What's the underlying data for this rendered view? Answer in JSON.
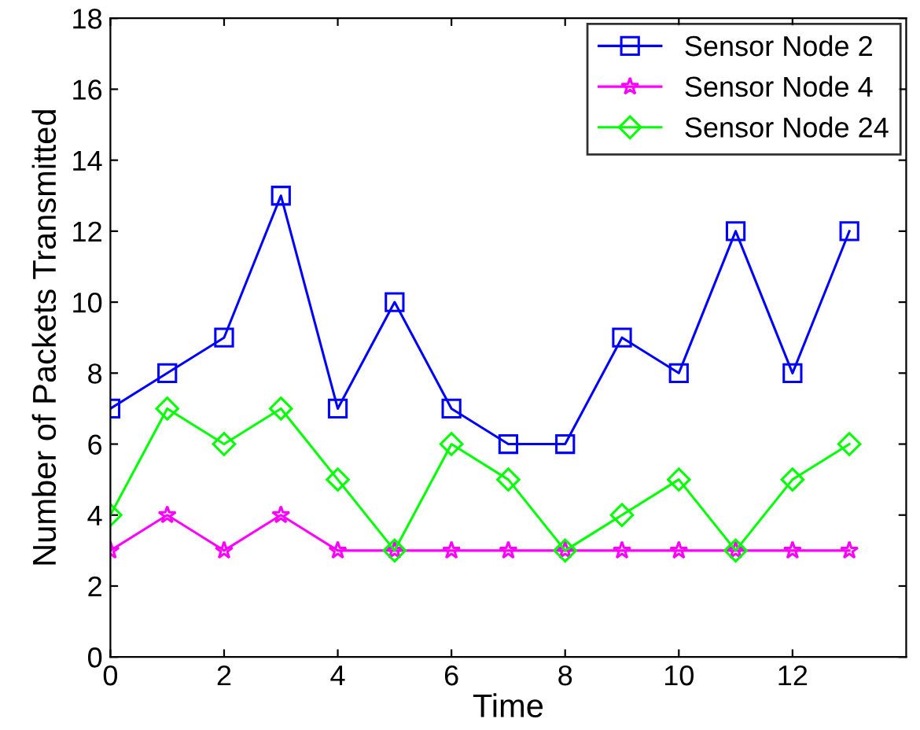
{
  "chart_data": {
    "type": "line",
    "xlabel": "Time",
    "ylabel": "Number of Packets Transmitted",
    "x": [
      0,
      1,
      2,
      3,
      4,
      5,
      6,
      7,
      8,
      9,
      10,
      11,
      12,
      13
    ],
    "series": [
      {
        "name": "Sensor Node 2",
        "color": "#0000ff",
        "marker": "square",
        "values": [
          7,
          8,
          9,
          13,
          7,
          10,
          7,
          6,
          6,
          9,
          8,
          12,
          8,
          12
        ]
      },
      {
        "name": "Sensor Node 4",
        "color": "#ff00ff",
        "marker": "star",
        "values": [
          3,
          4,
          3,
          4,
          3,
          3,
          3,
          3,
          3,
          3,
          3,
          3,
          3,
          3
        ]
      },
      {
        "name": "Sensor Node 24",
        "color": "#00ff00",
        "marker": "diamond",
        "values": [
          4,
          7,
          6,
          7,
          5,
          3,
          6,
          5,
          3,
          4,
          5,
          3,
          5,
          6
        ]
      }
    ],
    "xlim": [
      0,
      14
    ],
    "xticks": [
      0,
      2,
      4,
      6,
      8,
      10,
      12
    ],
    "ylim": [
      0,
      18
    ],
    "yticks": [
      0,
      2,
      4,
      6,
      8,
      10,
      12,
      14,
      16,
      18
    ],
    "grid": false,
    "legend": "top right",
    "line_style": "solid"
  }
}
